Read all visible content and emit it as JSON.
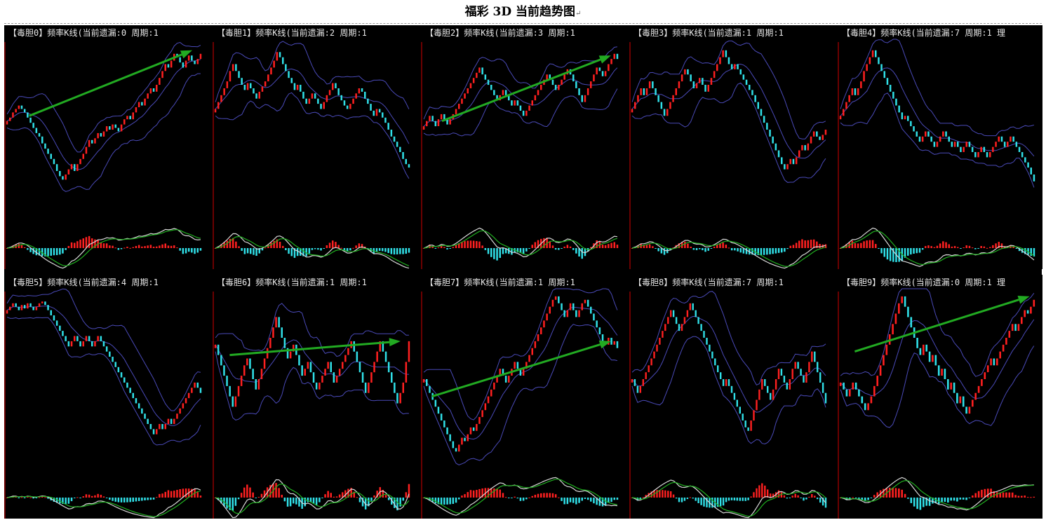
{
  "page": {
    "title": "福彩 3D 当前趋势图",
    "title_mark": "↵"
  },
  "colors": {
    "background": "#000000",
    "axis": "#b00000",
    "candle_up": "#ff2020",
    "candle_down": "#30e0e8",
    "band": "#4a4ab8",
    "oscillator_fast": "#d8d8d8",
    "oscillator_slow": "#20b020",
    "trend_arrow": "#22aa22"
  },
  "chart_data": [
    {
      "type": "candlestick",
      "title": "【毒胆0】频率K线(当前遗漏:0 周期:1",
      "close": [
        55,
        57,
        60,
        62,
        64,
        62,
        60,
        57,
        54,
        51,
        48,
        46,
        42,
        39,
        36,
        33,
        30,
        26,
        23,
        21,
        24,
        27,
        30,
        26,
        30,
        33,
        36,
        40,
        44,
        42,
        45,
        48,
        46,
        49,
        52,
        50,
        53,
        51,
        49,
        53,
        56,
        58,
        56,
        60,
        63,
        66,
        64,
        68,
        71,
        74,
        72,
        76,
        80,
        84,
        88,
        86,
        90,
        94,
        92,
        89,
        86,
        90,
        93,
        90,
        88,
        91,
        94
      ],
      "arrow": [
        [
          12,
          58
        ],
        [
          95,
          96
        ]
      ]
    },
    {
      "type": "candlestick",
      "title": "【毒胆1】频率K线(当前遗漏:2 周期:1",
      "close": [
        62,
        66,
        70,
        74,
        78,
        84,
        88,
        84,
        80,
        76,
        73,
        77,
        74,
        71,
        68,
        72,
        75,
        78,
        82,
        86,
        90,
        95,
        92,
        88,
        84,
        80,
        77,
        73,
        76,
        72,
        68,
        65,
        68,
        71,
        68,
        65,
        62,
        66,
        70,
        73,
        77,
        74,
        70,
        67,
        64,
        62,
        65,
        68,
        71,
        74,
        72,
        68,
        65,
        61,
        58,
        62,
        60,
        57,
        54,
        50,
        46,
        43,
        40,
        37,
        33,
        30,
        28
      ],
      "arrow": null
    },
    {
      "type": "candlestick",
      "title": "【毒胆2】频率K线(当前遗漏:3 周期:1",
      "close": [
        52,
        55,
        58,
        55,
        52,
        56,
        59,
        56,
        53,
        56,
        59,
        62,
        65,
        68,
        71,
        74,
        77,
        80,
        83,
        86,
        82,
        79,
        76,
        73,
        70,
        67,
        70,
        73,
        70,
        67,
        64,
        67,
        64,
        61,
        58,
        61,
        64,
        67,
        70,
        73,
        76,
        79,
        82,
        79,
        76,
        73,
        76,
        79,
        82,
        85,
        82,
        78,
        74,
        70,
        66,
        70,
        74,
        78,
        82,
        86,
        84,
        81,
        84,
        88,
        91,
        94,
        91
      ],
      "arrow": [
        [
          10,
          55
        ],
        [
          96,
          93
        ]
      ]
    },
    {
      "type": "candlestick",
      "title": "【毒胆3】频率K线(当前遗漏:1 周期:1",
      "close": [
        62,
        66,
        70,
        74,
        70,
        74,
        78,
        74,
        70,
        66,
        62,
        58,
        62,
        66,
        70,
        74,
        78,
        82,
        85,
        82,
        78,
        74,
        77,
        80,
        76,
        72,
        76,
        80,
        84,
        88,
        92,
        96,
        92,
        88,
        85,
        88,
        85,
        82,
        79,
        76,
        73,
        70,
        66,
        62,
        58,
        54,
        50,
        46,
        42,
        38,
        34,
        30,
        27,
        30,
        33,
        30,
        34,
        38,
        41,
        38,
        42,
        46,
        49,
        46,
        44,
        47,
        50
      ],
      "arrow": null
    },
    {
      "type": "candlestick",
      "title": "【毒胆4】频率K线(当前遗漏:7 周期:1 理",
      "close": [
        58,
        62,
        66,
        70,
        74,
        70,
        74,
        78,
        84,
        88,
        92,
        96,
        92,
        88,
        84,
        80,
        76,
        72,
        68,
        64,
        60,
        56,
        58,
        55,
        52,
        49,
        46,
        43,
        46,
        49,
        46,
        43,
        40,
        43,
        46,
        49,
        46,
        43,
        40,
        43,
        40,
        37,
        40,
        43,
        40,
        37,
        34,
        37,
        40,
        37,
        34,
        37,
        40,
        43,
        46,
        43,
        40,
        43,
        46,
        43,
        40,
        37,
        34,
        31,
        28,
        24,
        20
      ],
      "arrow": null
    },
    {
      "type": "candlestick",
      "title": "【毒胆5】频率K线(当前遗漏:4 周期:1",
      "close": [
        90,
        92,
        94,
        92,
        90,
        93,
        91,
        94,
        92,
        90,
        92,
        94,
        95,
        93,
        90,
        87,
        84,
        81,
        78,
        75,
        72,
        69,
        72,
        75,
        72,
        69,
        72,
        75,
        72,
        69,
        72,
        75,
        72,
        69,
        66,
        63,
        60,
        57,
        54,
        51,
        48,
        45,
        42,
        39,
        36,
        33,
        30,
        27,
        24,
        21,
        18,
        21,
        24,
        21,
        24,
        27,
        24,
        27,
        30,
        33,
        36,
        39,
        42,
        45,
        48,
        45,
        42
      ],
      "arrow": null
    },
    {
      "type": "candlestick",
      "title": "【毒胆6】频率K线(当前遗漏:1 周期:1",
      "close": [
        70,
        64,
        58,
        52,
        46,
        40,
        34,
        40,
        46,
        52,
        58,
        62,
        56,
        50,
        44,
        50,
        56,
        62,
        68,
        74,
        80,
        86,
        80,
        74,
        68,
        62,
        66,
        70,
        64,
        58,
        52,
        56,
        60,
        54,
        48,
        44,
        48,
        52,
        56,
        60,
        54,
        48,
        52,
        56,
        60,
        64,
        68,
        72,
        66,
        60,
        54,
        48,
        42,
        48,
        54,
        60,
        66,
        72,
        66,
        60,
        54,
        48,
        42,
        36,
        42,
        48,
        60,
        72
      ],
      "arrow": [
        [
          8,
          64
        ],
        [
          95,
          72
        ]
      ]
    },
    {
      "type": "candlestick",
      "title": "【毒胆7】频率K线(当前遗漏:1 周期:1",
      "close": [
        50,
        46,
        42,
        38,
        34,
        30,
        26,
        22,
        18,
        14,
        10,
        8,
        12,
        16,
        14,
        18,
        22,
        20,
        24,
        28,
        32,
        36,
        40,
        44,
        48,
        52,
        56,
        52,
        48,
        52,
        56,
        60,
        56,
        52,
        56,
        60,
        64,
        68,
        72,
        76,
        80,
        84,
        88,
        92,
        96,
        98,
        94,
        90,
        86,
        90,
        94,
        90,
        86,
        90,
        94,
        96,
        92,
        88,
        84,
        80,
        76,
        72,
        70,
        74,
        70,
        72,
        68
      ],
      "arrow": [
        [
          5,
          40
        ],
        [
          96,
          72
        ]
      ]
    },
    {
      "type": "candlestick",
      "title": "【毒胆8】频率K线(当前遗漏:7 周期:1",
      "close": [
        50,
        46,
        42,
        46,
        50,
        54,
        58,
        62,
        66,
        70,
        74,
        78,
        82,
        86,
        90,
        86,
        82,
        78,
        82,
        86,
        90,
        94,
        90,
        86,
        82,
        78,
        74,
        70,
        66,
        62,
        58,
        54,
        50,
        46,
        50,
        46,
        42,
        38,
        34,
        30,
        26,
        22,
        20,
        26,
        32,
        38,
        44,
        50,
        46,
        42,
        38,
        44,
        50,
        56,
        52,
        48,
        44,
        50,
        56,
        60,
        56,
        52,
        48,
        54,
        60,
        66,
        60,
        54,
        48,
        42,
        36
      ],
      "arrow": null
    },
    {
      "type": "candlestick",
      "title": "【毒胆9】频率K线(当前遗漏:0 周期:1 理",
      "close": [
        48,
        44,
        40,
        44,
        48,
        44,
        40,
        36,
        32,
        36,
        40,
        46,
        52,
        58,
        64,
        70,
        76,
        82,
        88,
        94,
        98,
        92,
        86,
        80,
        74,
        68,
        64,
        70,
        66,
        60,
        64,
        58,
        52,
        56,
        50,
        44,
        48,
        42,
        36,
        40,
        34,
        30,
        34,
        38,
        42,
        46,
        50,
        54,
        58,
        62,
        58,
        62,
        66,
        70,
        74,
        78,
        82,
        78,
        82,
        86,
        90,
        88,
        92,
        96
      ],
      "arrow": [
        [
          8,
          66
        ],
        [
          97,
          98
        ]
      ]
    }
  ]
}
